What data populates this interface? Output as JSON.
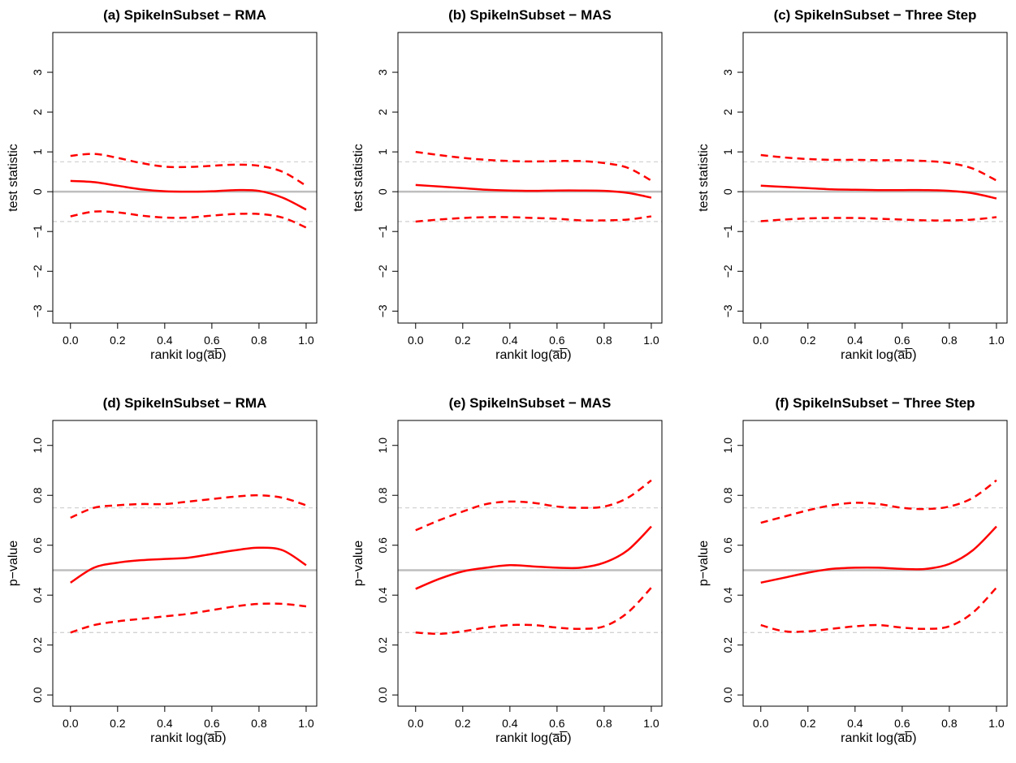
{
  "chart_data": [
    {
      "type": "line",
      "title": "(a) SpikeInSubset − RMA",
      "xlabel": "rankit log(a̅b̅)",
      "ylabel": "test statistic",
      "xlim": [
        -0.075,
        1.045
      ],
      "ylim": [
        -3.3,
        4
      ],
      "xticks": [
        {
          "value": 0,
          "label": "0.0"
        },
        0.2,
        0.4,
        0.6,
        0.8,
        {
          "value": 1,
          "label": "1.0"
        }
      ],
      "yticks": [
        {
          "value": -3,
          "label": "−3"
        },
        {
          "value": -2,
          "label": "−2"
        },
        {
          "value": -1,
          "label": "−1"
        },
        0,
        1,
        2,
        3
      ],
      "hlines": [
        {
          "value": 0,
          "color": "#bebebe",
          "dashed": false
        },
        {
          "value": 0.75,
          "color": "#d3d3d3",
          "dashed": true
        },
        {
          "value": -0.75,
          "color": "#d3d3d3",
          "dashed": true
        }
      ],
      "x": [
        0,
        0.1,
        0.2,
        0.3,
        0.4,
        0.5,
        0.6,
        0.7,
        0.8,
        0.9,
        1
      ],
      "series": [
        {
          "color": "#ff0000",
          "dashed": false,
          "values": [
            0.27,
            0.24,
            0.15,
            0.06,
            0.01,
            0.0,
            0.01,
            0.04,
            0.02,
            -0.15,
            -0.45
          ]
        },
        {
          "color": "#ff0000",
          "dashed": true,
          "values": [
            0.9,
            0.95,
            0.85,
            0.72,
            0.63,
            0.62,
            0.65,
            0.68,
            0.65,
            0.5,
            0.15
          ]
        },
        {
          "color": "#ff0000",
          "dashed": true,
          "values": [
            -0.62,
            -0.5,
            -0.52,
            -0.6,
            -0.65,
            -0.65,
            -0.6,
            -0.56,
            -0.56,
            -0.65,
            -0.9
          ]
        }
      ]
    },
    {
      "type": "line",
      "title": "(b) SpikeInSubset − MAS",
      "xlabel": "rankit log(a̅b̅)",
      "ylabel": "test statistic",
      "xlim": [
        -0.075,
        1.045
      ],
      "ylim": [
        -3.3,
        4
      ],
      "xticks": [
        {
          "value": 0,
          "label": "0.0"
        },
        0.2,
        0.4,
        0.6,
        0.8,
        {
          "value": 1,
          "label": "1.0"
        }
      ],
      "yticks": [
        {
          "value": -3,
          "label": "−3"
        },
        {
          "value": -2,
          "label": "−2"
        },
        {
          "value": -1,
          "label": "−1"
        },
        0,
        1,
        2,
        3
      ],
      "hlines": [
        {
          "value": 0,
          "color": "#bebebe",
          "dashed": false
        },
        {
          "value": 0.75,
          "color": "#d3d3d3",
          "dashed": true
        },
        {
          "value": -0.75,
          "color": "#d3d3d3",
          "dashed": true
        }
      ],
      "x": [
        0,
        0.1,
        0.2,
        0.3,
        0.4,
        0.5,
        0.6,
        0.7,
        0.8,
        0.9,
        1
      ],
      "series": [
        {
          "color": "#ff0000",
          "dashed": false,
          "values": [
            0.17,
            0.13,
            0.09,
            0.05,
            0.03,
            0.02,
            0.03,
            0.03,
            0.02,
            -0.03,
            -0.15
          ]
        },
        {
          "color": "#ff0000",
          "dashed": true,
          "values": [
            1.0,
            0.92,
            0.85,
            0.8,
            0.77,
            0.76,
            0.77,
            0.77,
            0.72,
            0.6,
            0.28
          ]
        },
        {
          "color": "#ff0000",
          "dashed": true,
          "values": [
            -0.75,
            -0.7,
            -0.66,
            -0.64,
            -0.64,
            -0.66,
            -0.68,
            -0.72,
            -0.72,
            -0.7,
            -0.62
          ]
        }
      ]
    },
    {
      "type": "line",
      "title": "(c) SpikeInSubset − Three Step",
      "xlabel": "rankit log(a̅b̅)",
      "ylabel": "test statistic",
      "xlim": [
        -0.075,
        1.045
      ],
      "ylim": [
        -3.3,
        4
      ],
      "xticks": [
        {
          "value": 0,
          "label": "0.0"
        },
        0.2,
        0.4,
        0.6,
        0.8,
        {
          "value": 1,
          "label": "1.0"
        }
      ],
      "yticks": [
        {
          "value": -3,
          "label": "−3"
        },
        {
          "value": -2,
          "label": "−2"
        },
        {
          "value": -1,
          "label": "−1"
        },
        0,
        1,
        2,
        3
      ],
      "hlines": [
        {
          "value": 0,
          "color": "#bebebe",
          "dashed": false
        },
        {
          "value": 0.75,
          "color": "#d3d3d3",
          "dashed": true
        },
        {
          "value": -0.75,
          "color": "#d3d3d3",
          "dashed": true
        }
      ],
      "x": [
        0,
        0.1,
        0.2,
        0.3,
        0.4,
        0.5,
        0.6,
        0.7,
        0.8,
        0.9,
        1
      ],
      "series": [
        {
          "color": "#ff0000",
          "dashed": false,
          "values": [
            0.15,
            0.12,
            0.09,
            0.06,
            0.05,
            0.04,
            0.04,
            0.04,
            0.02,
            -0.04,
            -0.17
          ]
        },
        {
          "color": "#ff0000",
          "dashed": true,
          "values": [
            0.92,
            0.86,
            0.82,
            0.8,
            0.8,
            0.79,
            0.79,
            0.77,
            0.72,
            0.58,
            0.28
          ]
        },
        {
          "color": "#ff0000",
          "dashed": true,
          "values": [
            -0.74,
            -0.7,
            -0.67,
            -0.66,
            -0.66,
            -0.68,
            -0.7,
            -0.72,
            -0.72,
            -0.7,
            -0.64
          ]
        }
      ]
    },
    {
      "type": "line",
      "title": "(d) SpikeInSubset − RMA",
      "xlabel": "rankit log(a̅b̅)",
      "ylabel": "p−value",
      "xlim": [
        -0.075,
        1.045
      ],
      "ylim": [
        -0.045,
        1.1
      ],
      "xticks": [
        {
          "value": 0,
          "label": "0.0"
        },
        0.2,
        0.4,
        0.6,
        0.8,
        {
          "value": 1,
          "label": "1.0"
        }
      ],
      "yticks": [
        {
          "value": 0,
          "label": "0.0"
        },
        0.2,
        0.4,
        0.6,
        0.8,
        {
          "value": 1,
          "label": "1.0"
        }
      ],
      "hlines": [
        {
          "value": 0.5,
          "color": "#bebebe",
          "dashed": false
        },
        {
          "value": 0.75,
          "color": "#d3d3d3",
          "dashed": true
        },
        {
          "value": 0.25,
          "color": "#d3d3d3",
          "dashed": true
        }
      ],
      "x": [
        0,
        0.1,
        0.2,
        0.3,
        0.4,
        0.5,
        0.6,
        0.7,
        0.8,
        0.9,
        1
      ],
      "series": [
        {
          "color": "#ff0000",
          "dashed": false,
          "values": [
            0.45,
            0.51,
            0.53,
            0.54,
            0.545,
            0.55,
            0.565,
            0.58,
            0.59,
            0.58,
            0.52
          ]
        },
        {
          "color": "#ff0000",
          "dashed": true,
          "values": [
            0.71,
            0.75,
            0.76,
            0.765,
            0.765,
            0.775,
            0.785,
            0.795,
            0.8,
            0.79,
            0.76
          ]
        },
        {
          "color": "#ff0000",
          "dashed": true,
          "values": [
            0.25,
            0.28,
            0.295,
            0.305,
            0.315,
            0.325,
            0.34,
            0.355,
            0.365,
            0.365,
            0.355
          ]
        }
      ]
    },
    {
      "type": "line",
      "title": "(e) SpikeInSubset − MAS",
      "xlabel": "rankit log(a̅b̅)",
      "ylabel": "p−value",
      "xlim": [
        -0.075,
        1.045
      ],
      "ylim": [
        -0.045,
        1.1
      ],
      "xticks": [
        {
          "value": 0,
          "label": "0.0"
        },
        0.2,
        0.4,
        0.6,
        0.8,
        {
          "value": 1,
          "label": "1.0"
        }
      ],
      "yticks": [
        {
          "value": 0,
          "label": "0.0"
        },
        0.2,
        0.4,
        0.6,
        0.8,
        {
          "value": 1,
          "label": "1.0"
        }
      ],
      "hlines": [
        {
          "value": 0.5,
          "color": "#bebebe",
          "dashed": false
        },
        {
          "value": 0.75,
          "color": "#d3d3d3",
          "dashed": true
        },
        {
          "value": 0.25,
          "color": "#d3d3d3",
          "dashed": true
        }
      ],
      "x": [
        0,
        0.1,
        0.2,
        0.3,
        0.4,
        0.5,
        0.6,
        0.7,
        0.8,
        0.9,
        1
      ],
      "series": [
        {
          "color": "#ff0000",
          "dashed": false,
          "values": [
            0.425,
            0.465,
            0.495,
            0.51,
            0.52,
            0.515,
            0.51,
            0.51,
            0.53,
            0.58,
            0.675
          ]
        },
        {
          "color": "#ff0000",
          "dashed": true,
          "values": [
            0.66,
            0.7,
            0.735,
            0.765,
            0.775,
            0.77,
            0.755,
            0.75,
            0.755,
            0.79,
            0.86
          ]
        },
        {
          "color": "#ff0000",
          "dashed": true,
          "values": [
            0.25,
            0.245,
            0.255,
            0.27,
            0.28,
            0.28,
            0.27,
            0.265,
            0.275,
            0.33,
            0.43
          ]
        }
      ]
    },
    {
      "type": "line",
      "title": "(f) SpikeInSubset − Three Step",
      "xlabel": "rankit log(a̅b̅)",
      "ylabel": "p−value",
      "xlim": [
        -0.075,
        1.045
      ],
      "ylim": [
        -0.045,
        1.1
      ],
      "xticks": [
        {
          "value": 0,
          "label": "0.0"
        },
        0.2,
        0.4,
        0.6,
        0.8,
        {
          "value": 1,
          "label": "1.0"
        }
      ],
      "yticks": [
        {
          "value": 0,
          "label": "0.0"
        },
        0.2,
        0.4,
        0.6,
        0.8,
        {
          "value": 1,
          "label": "1.0"
        }
      ],
      "hlines": [
        {
          "value": 0.5,
          "color": "#bebebe",
          "dashed": false
        },
        {
          "value": 0.75,
          "color": "#d3d3d3",
          "dashed": true
        },
        {
          "value": 0.25,
          "color": "#d3d3d3",
          "dashed": true
        }
      ],
      "x": [
        0,
        0.1,
        0.2,
        0.3,
        0.4,
        0.5,
        0.6,
        0.7,
        0.8,
        0.9,
        1
      ],
      "series": [
        {
          "color": "#ff0000",
          "dashed": false,
          "values": [
            0.45,
            0.47,
            0.49,
            0.505,
            0.51,
            0.51,
            0.505,
            0.505,
            0.525,
            0.58,
            0.675
          ]
        },
        {
          "color": "#ff0000",
          "dashed": true,
          "values": [
            0.69,
            0.715,
            0.74,
            0.76,
            0.77,
            0.765,
            0.75,
            0.745,
            0.755,
            0.79,
            0.86
          ]
        },
        {
          "color": "#ff0000",
          "dashed": true,
          "values": [
            0.28,
            0.255,
            0.255,
            0.265,
            0.275,
            0.28,
            0.27,
            0.265,
            0.275,
            0.33,
            0.43
          ]
        }
      ]
    }
  ]
}
